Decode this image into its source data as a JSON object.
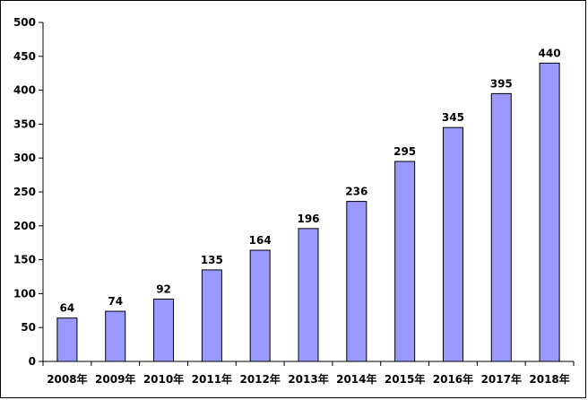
{
  "chart_data": {
    "type": "bar",
    "categories": [
      "2008年",
      "2009年",
      "2010年",
      "2011年",
      "2012年",
      "2013年",
      "2014年",
      "2015年",
      "2016年",
      "2017年",
      "2018年"
    ],
    "values": [
      64,
      74,
      92,
      135,
      164,
      196,
      236,
      295,
      345,
      395,
      440
    ],
    "data_labels": [
      "64",
      "74",
      "92",
      "135",
      "164",
      "196",
      "236",
      "295",
      "345",
      "395",
      "440"
    ],
    "yticks": [
      "0",
      "50",
      "100",
      "150",
      "200",
      "250",
      "300",
      "350",
      "400",
      "450",
      "500"
    ],
    "ylim": [
      0,
      500
    ],
    "grid": false,
    "legend": "none",
    "title": "",
    "xlabel": "",
    "ylabel": "",
    "colors": {
      "bar_fill": "#9999FF",
      "bar_stroke": "#000000",
      "axis": "#000000",
      "text": "#000000"
    }
  }
}
